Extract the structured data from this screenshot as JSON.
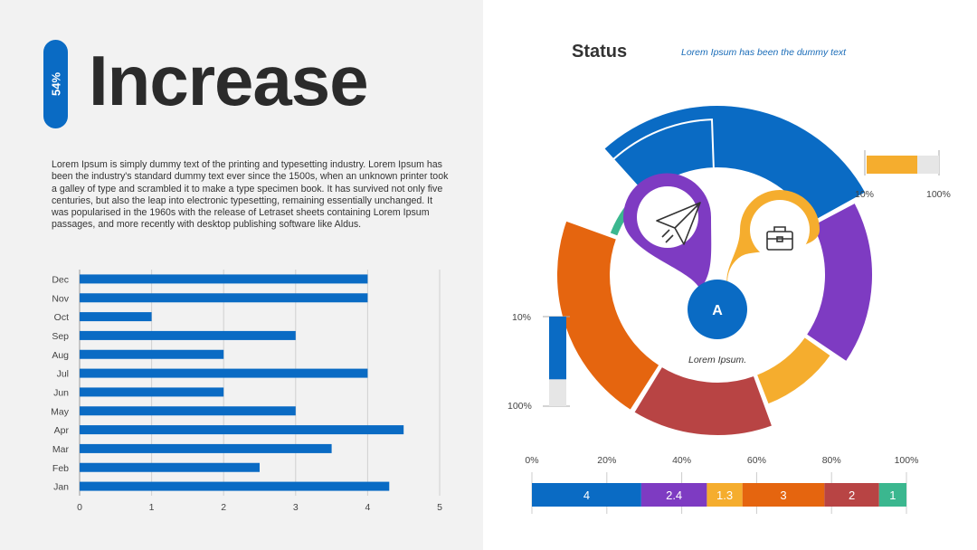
{
  "badge": "54%",
  "title": "Increase",
  "paragraph": "Lorem Ipsum is simply dummy text of the printing and typesetting industry. Lorem Ipsum has been the industry's standard dummy text ever since the 1500s, when an unknown printer took a galley of type and scrambled it to make a type specimen book. It has survived not only five centuries, but also the leap into electronic typesetting, remaining essentially unchanged. It was popularised in the 1960s with the release of Letraset sheets containing Lorem Ipsum passages, and more recently with desktop publishing software like Aldus.",
  "status": {
    "title": "Status",
    "subtitle": "Lorem Ipsum has been the dummy text",
    "center_letter": "A",
    "caption": "Lorem Ipsum."
  },
  "gauge_right": {
    "low": "10%",
    "high": "100%",
    "value": 0.7
  },
  "gauge_left": {
    "low": "10%",
    "high": "100%",
    "value": 0.7
  },
  "colors": {
    "blue": "#0a6bc4",
    "purple": "#7e3bc2",
    "yellow": "#f5ad2e",
    "red": "#b84444",
    "orange": "#e5650f",
    "green": "#3bb78f"
  },
  "icons": [
    "paper-plane-icon",
    "briefcase-icon"
  ],
  "chart_data": [
    {
      "type": "bar",
      "orientation": "horizontal",
      "categories": [
        "Jan",
        "Feb",
        "Mar",
        "Apr",
        "May",
        "Jun",
        "Jul",
        "Aug",
        "Sep",
        "Oct",
        "Nov",
        "Dec"
      ],
      "values": [
        4.3,
        2.5,
        3.5,
        4.5,
        3,
        2,
        4,
        2,
        3,
        1,
        4,
        4
      ],
      "xlim": [
        0,
        5
      ],
      "xticks": [
        "0",
        "1",
        "2",
        "3",
        "4",
        "5"
      ],
      "grid": true,
      "color": "#0a6bc4"
    },
    {
      "type": "bar",
      "orientation": "stacked-horizontal",
      "values": [
        4,
        2.4,
        1.3,
        3,
        2,
        1
      ],
      "labels": [
        "4",
        "2.4",
        "1.3",
        "3",
        "2",
        "1"
      ],
      "colors": [
        "#0a6bc4",
        "#7e3bc2",
        "#f5ad2e",
        "#e5650f",
        "#b84444",
        "#3bb78f"
      ],
      "xticks": [
        "0%",
        "20%",
        "40%",
        "60%",
        "80%",
        "100%"
      ]
    },
    {
      "type": "pie",
      "style": "donut",
      "values": [
        4,
        2.4,
        1.3,
        3,
        2,
        1
      ],
      "colors": [
        "#0a6bc4",
        "#7e3bc2",
        "#f5ad2e",
        "#e5650f",
        "#b84444",
        "#3bb78f"
      ]
    }
  ]
}
